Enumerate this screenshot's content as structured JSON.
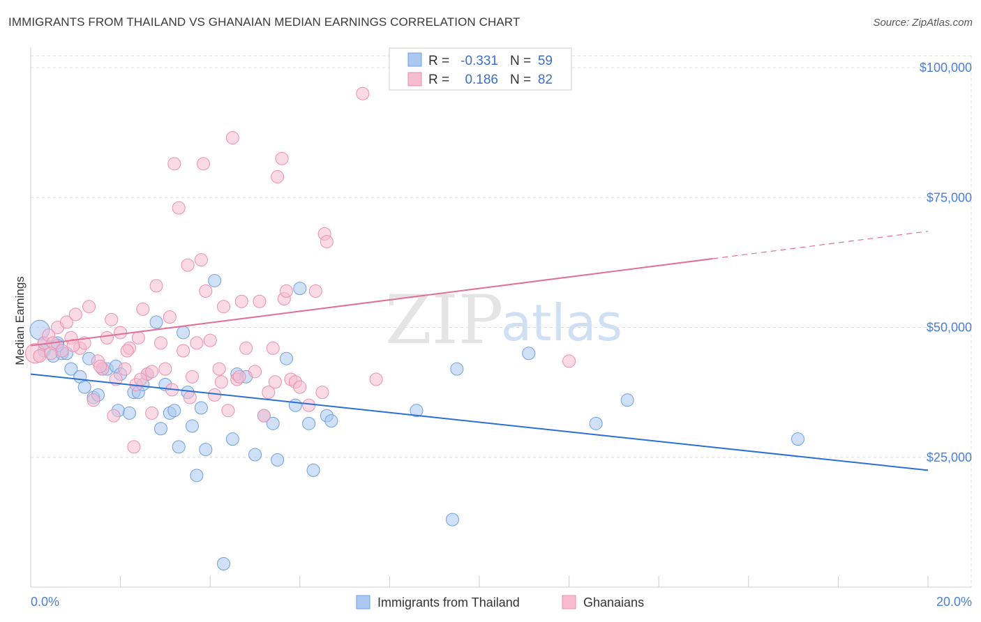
{
  "title": "IMMIGRANTS FROM THAILAND VS GHANAIAN MEDIAN EARNINGS CORRELATION CHART",
  "source": "Source: ZipAtlas.com",
  "watermark": {
    "zip": "ZIP",
    "atlas": "atlas"
  },
  "colors": {
    "blue_fill": "#aac8f0",
    "blue_stroke": "#6f9fe0",
    "blue_line": "#2a6fd6",
    "pink_fill": "#f6bcd0",
    "pink_stroke": "#ea8fae",
    "pink_line": "#e07098",
    "grid": "#dddddd",
    "axis_text": "#4a7fd4"
  },
  "legend": {
    "rows": [
      {
        "r_label": "R =",
        "r_value": "-0.331",
        "n_label": "N =",
        "n_value": "59"
      },
      {
        "r_label": "R =",
        "r_value": "0.186",
        "n_label": "N =",
        "n_value": "82"
      }
    ]
  },
  "chart_data": {
    "type": "scatter",
    "xlabel": "",
    "ylabel": "Median Earnings",
    "xlim": [
      0,
      20
    ],
    "ylim": [
      0,
      100000
    ],
    "x_tick_labels": [
      "0.0%",
      "20.0%"
    ],
    "y_ticks": [
      25000,
      50000,
      75000,
      100000
    ],
    "y_tick_labels": [
      "$25,000",
      "$50,000",
      "$75,000",
      "$100,000"
    ],
    "grid": true,
    "legend_position": "top-center",
    "series": [
      {
        "name": "Immigrants from Thailand",
        "color": "blue",
        "trend": {
          "x0": 0,
          "y0": 41000,
          "x1": 20,
          "y1": 22500,
          "solid_until": 20
        },
        "points": [
          [
            0.2,
            49500
          ],
          [
            0.3,
            47000
          ],
          [
            0.3,
            45500
          ],
          [
            0.5,
            44500
          ],
          [
            0.6,
            47000
          ],
          [
            0.7,
            45000
          ],
          [
            0.8,
            45000
          ],
          [
            0.9,
            42000
          ],
          [
            1.1,
            40500
          ],
          [
            1.2,
            38500
          ],
          [
            1.3,
            44000
          ],
          [
            1.4,
            36500
          ],
          [
            1.5,
            37000
          ],
          [
            1.6,
            42000
          ],
          [
            1.7,
            42000
          ],
          [
            1.9,
            42500
          ],
          [
            1.95,
            34000
          ],
          [
            2.0,
            41000
          ],
          [
            2.2,
            33500
          ],
          [
            2.3,
            37500
          ],
          [
            2.4,
            37500
          ],
          [
            2.5,
            39000
          ],
          [
            2.6,
            41000
          ],
          [
            2.8,
            51000
          ],
          [
            2.9,
            30500
          ],
          [
            3.0,
            39000
          ],
          [
            3.1,
            33500
          ],
          [
            3.2,
            34000
          ],
          [
            3.3,
            27000
          ],
          [
            3.4,
            49000
          ],
          [
            3.5,
            37500
          ],
          [
            3.6,
            31000
          ],
          [
            3.7,
            21500
          ],
          [
            3.8,
            34500
          ],
          [
            3.9,
            26500
          ],
          [
            4.1,
            59000
          ],
          [
            4.3,
            4500
          ],
          [
            4.5,
            28500
          ],
          [
            4.6,
            41000
          ],
          [
            4.8,
            40500
          ],
          [
            5.0,
            25500
          ],
          [
            5.2,
            33000
          ],
          [
            5.4,
            31500
          ],
          [
            5.5,
            24500
          ],
          [
            5.7,
            44000
          ],
          [
            5.9,
            35000
          ],
          [
            6.0,
            57500
          ],
          [
            6.2,
            31500
          ],
          [
            6.3,
            22500
          ],
          [
            6.6,
            33000
          ],
          [
            6.7,
            32000
          ],
          [
            8.6,
            34000
          ],
          [
            9.4,
            13000
          ],
          [
            9.5,
            42000
          ],
          [
            11.1,
            45000
          ],
          [
            12.6,
            31500
          ],
          [
            13.3,
            36000
          ],
          [
            17.1,
            28500
          ],
          [
            0.6,
            46500
          ]
        ]
      },
      {
        "name": "Ghanaians",
        "color": "pink",
        "trend": {
          "x0": 0,
          "y0": 46500,
          "x1": 20,
          "y1": 68500,
          "solid_until": 15.2
        },
        "points": [
          [
            0.1,
            45000
          ],
          [
            0.2,
            44500
          ],
          [
            0.3,
            47000
          ],
          [
            0.4,
            48500
          ],
          [
            0.5,
            47000
          ],
          [
            0.6,
            50000
          ],
          [
            0.7,
            45500
          ],
          [
            0.8,
            51000
          ],
          [
            0.9,
            48000
          ],
          [
            1.0,
            52500
          ],
          [
            1.1,
            46000
          ],
          [
            1.2,
            47000
          ],
          [
            1.3,
            54000
          ],
          [
            1.4,
            36000
          ],
          [
            1.5,
            43500
          ],
          [
            1.6,
            42000
          ],
          [
            1.7,
            48000
          ],
          [
            1.8,
            51500
          ],
          [
            1.9,
            40000
          ],
          [
            2.0,
            49000
          ],
          [
            2.1,
            42000
          ],
          [
            2.2,
            46000
          ],
          [
            2.3,
            27000
          ],
          [
            2.35,
            39000
          ],
          [
            2.4,
            48000
          ],
          [
            2.5,
            53500
          ],
          [
            2.6,
            41000
          ],
          [
            2.7,
            33500
          ],
          [
            2.8,
            58000
          ],
          [
            2.9,
            47000
          ],
          [
            3.0,
            42000
          ],
          [
            3.1,
            52000
          ],
          [
            3.2,
            81500
          ],
          [
            3.3,
            73000
          ],
          [
            3.4,
            45500
          ],
          [
            3.5,
            62000
          ],
          [
            3.6,
            40500
          ],
          [
            3.7,
            47000
          ],
          [
            3.8,
            63000
          ],
          [
            3.85,
            81500
          ],
          [
            3.9,
            57000
          ],
          [
            4.0,
            47500
          ],
          [
            4.1,
            37000
          ],
          [
            4.2,
            42000
          ],
          [
            4.3,
            54000
          ],
          [
            4.4,
            34000
          ],
          [
            4.5,
            86500
          ],
          [
            4.6,
            40000
          ],
          [
            4.7,
            55000
          ],
          [
            4.8,
            46000
          ],
          [
            5.0,
            41500
          ],
          [
            5.1,
            55000
          ],
          [
            5.2,
            33000
          ],
          [
            5.3,
            37500
          ],
          [
            5.4,
            46000
          ],
          [
            5.5,
            79000
          ],
          [
            5.6,
            82500
          ],
          [
            5.65,
            55500
          ],
          [
            5.7,
            57000
          ],
          [
            5.8,
            40000
          ],
          [
            5.9,
            39500
          ],
          [
            6.0,
            38500
          ],
          [
            6.2,
            35000
          ],
          [
            6.35,
            57000
          ],
          [
            6.5,
            37500
          ],
          [
            6.55,
            68000
          ],
          [
            6.6,
            66500
          ],
          [
            7.4,
            95000
          ],
          [
            7.7,
            40000
          ],
          [
            12.0,
            43500
          ],
          [
            1.55,
            42500
          ],
          [
            2.15,
            45500
          ],
          [
            3.55,
            36500
          ],
          [
            4.25,
            39500
          ],
          [
            0.45,
            45000
          ],
          [
            1.85,
            33000
          ],
          [
            2.7,
            41500
          ],
          [
            3.15,
            38000
          ],
          [
            0.95,
            46500
          ],
          [
            5.45,
            39500
          ],
          [
            4.65,
            40500
          ],
          [
            2.45,
            40000
          ]
        ]
      }
    ]
  },
  "bottom_legend": [
    {
      "label": "Immigrants from Thailand",
      "color": "blue"
    },
    {
      "label": "Ghanaians",
      "color": "pink"
    }
  ]
}
